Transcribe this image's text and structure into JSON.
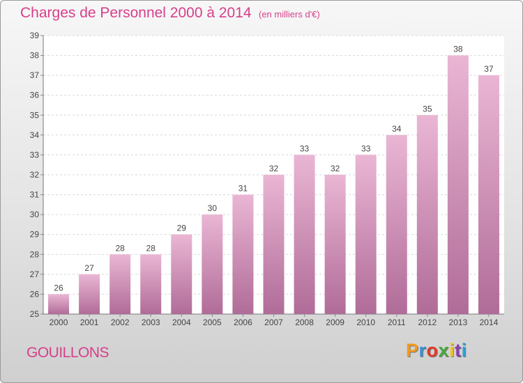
{
  "header": {
    "title": "Charges de Personnel 2000 à 2014",
    "subtitle": "(en milliers d'€)"
  },
  "footer": {
    "commune": "GOUILLONS",
    "logo": "Proxiti",
    "logo_colors": [
      "#f39a1e",
      "#3a8fd4",
      "#e4382a",
      "#4aa83a",
      "#f3c51e",
      "#8c3fa8",
      "#2b9fd8"
    ]
  },
  "colors": {
    "bar_light": "#eab6d4",
    "bar_dark": "#b06c98",
    "accent": "#d63f8a"
  },
  "chart_data": {
    "type": "bar",
    "categories": [
      "2000",
      "2001",
      "2002",
      "2003",
      "2004",
      "2005",
      "2006",
      "2007",
      "2008",
      "2009",
      "2010",
      "2011",
      "2012",
      "2013",
      "2014"
    ],
    "values": [
      26,
      27,
      28,
      28,
      29,
      30,
      31,
      32,
      33,
      32,
      33,
      34,
      35,
      38,
      37
    ],
    "title": "Charges de Personnel 2000 à 2014",
    "ylim": [
      25,
      39
    ],
    "yticks": [
      25,
      26,
      27,
      28,
      29,
      30,
      31,
      32,
      33,
      34,
      35,
      36,
      37,
      38,
      39
    ],
    "grid": true
  }
}
